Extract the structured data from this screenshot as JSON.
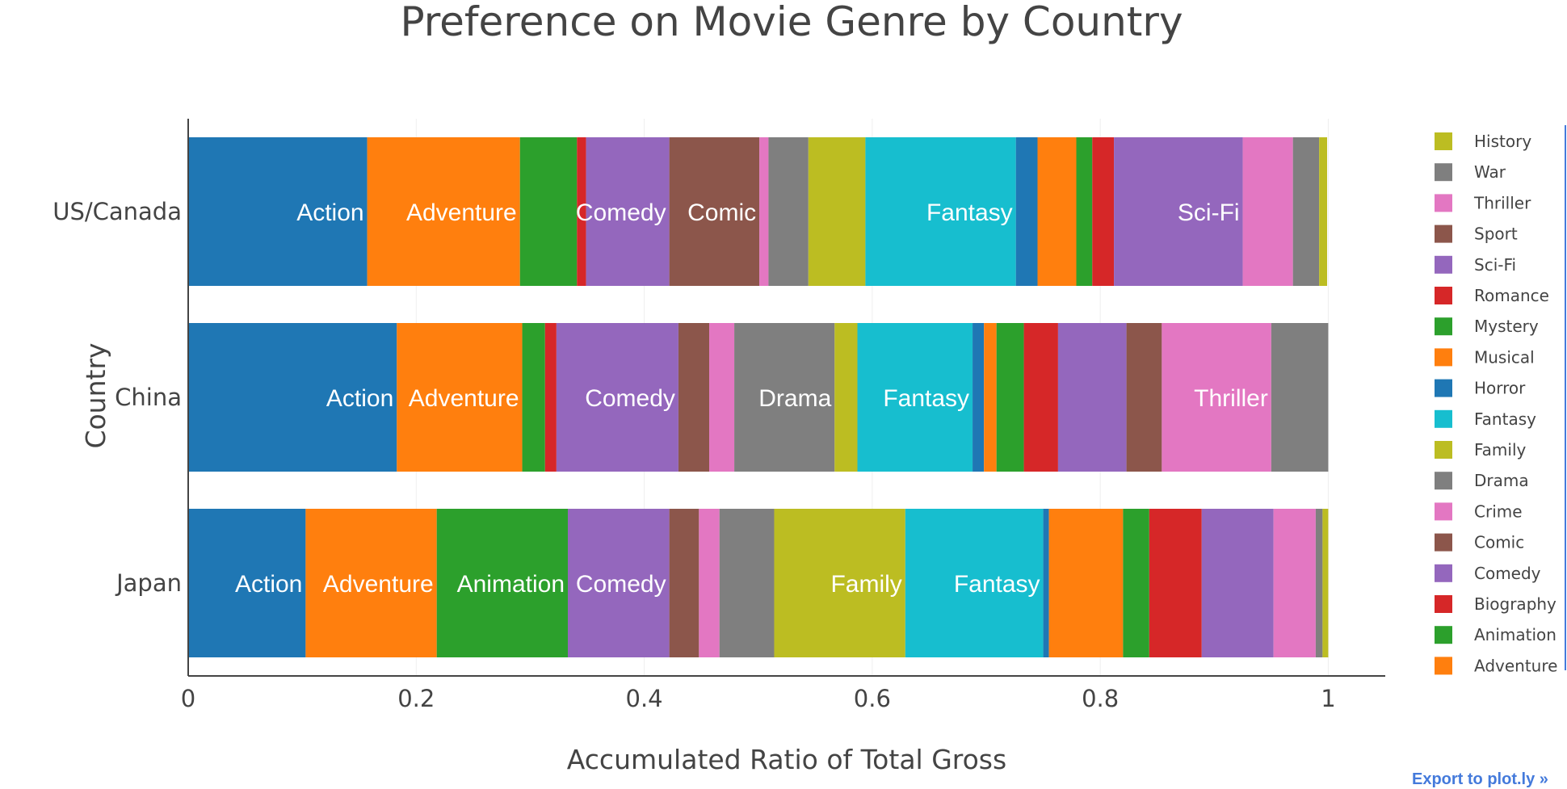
{
  "export_link": "Export to plot.ly »",
  "chart_data": {
    "type": "bar",
    "orientation": "horizontal",
    "barmode": "stack",
    "title": "Preference on Movie Genre by Country",
    "xlabel": "Accumulated Ratio of Total Gross",
    "ylabel": "Country",
    "xlim": [
      0,
      1.05
    ],
    "xticks": [
      0,
      0.2,
      0.4,
      0.6,
      0.8,
      1
    ],
    "xtick_labels": [
      "0",
      "0.2",
      "0.4",
      "0.6",
      "0.8",
      "1"
    ],
    "grid": true,
    "categories": [
      "US/Canada",
      "China",
      "Japan"
    ],
    "legend_position": "right",
    "series": [
      {
        "name": "Action",
        "color": "#1f77b4",
        "values": [
          0.157,
          0.183,
          0.103
        ],
        "labels": [
          "Action",
          "Action",
          "Action"
        ]
      },
      {
        "name": "Adventure",
        "color": "#ff7f0e",
        "values": [
          0.134,
          0.11,
          0.115
        ],
        "labels": [
          "Adventure",
          "Adventure",
          "Adventure"
        ]
      },
      {
        "name": "Animation",
        "color": "#2ca02c",
        "values": [
          0.05,
          0.02,
          0.115
        ],
        "labels": [
          "",
          "",
          "Animation"
        ]
      },
      {
        "name": "Biography",
        "color": "#d62728",
        "values": [
          0.008,
          0.01,
          0.0
        ],
        "labels": [
          "",
          "",
          ""
        ]
      },
      {
        "name": "Comedy",
        "color": "#9467bd",
        "values": [
          0.073,
          0.107,
          0.089
        ],
        "labels": [
          "Comedy",
          "Comedy",
          "Comedy"
        ]
      },
      {
        "name": "Comic",
        "color": "#8c564b",
        "values": [
          0.079,
          0.027,
          0.026
        ],
        "labels": [
          "Comic",
          "",
          ""
        ]
      },
      {
        "name": "Crime",
        "color": "#e377c2",
        "values": [
          0.008,
          0.022,
          0.018
        ],
        "labels": [
          "",
          "",
          ""
        ]
      },
      {
        "name": "Drama",
        "color": "#7f7f7f",
        "values": [
          0.035,
          0.088,
          0.048
        ],
        "labels": [
          "",
          "Drama",
          ""
        ]
      },
      {
        "name": "Family",
        "color": "#bcbd22",
        "values": [
          0.05,
          0.02,
          0.115
        ],
        "labels": [
          "",
          "",
          "Family"
        ]
      },
      {
        "name": "Fantasy",
        "color": "#17becf",
        "values": [
          0.132,
          0.101,
          0.121
        ],
        "labels": [
          "Fantasy",
          "Fantasy",
          "Fantasy"
        ]
      },
      {
        "name": "Horror",
        "color": "#1f77b4",
        "values": [
          0.019,
          0.01,
          0.005
        ],
        "labels": [
          "",
          "",
          ""
        ]
      },
      {
        "name": "Musical",
        "color": "#ff7f0e",
        "values": [
          0.034,
          0.011,
          0.065
        ],
        "labels": [
          "",
          "",
          ""
        ]
      },
      {
        "name": "Mystery",
        "color": "#2ca02c",
        "values": [
          0.014,
          0.024,
          0.023
        ],
        "labels": [
          "",
          "",
          ""
        ]
      },
      {
        "name": "Romance",
        "color": "#d62728",
        "values": [
          0.019,
          0.03,
          0.046
        ],
        "labels": [
          "",
          "",
          ""
        ]
      },
      {
        "name": "Sci-Fi",
        "color": "#9467bd",
        "values": [
          0.113,
          0.06,
          0.063
        ],
        "labels": [
          "Sci-Fi",
          "",
          ""
        ]
      },
      {
        "name": "Sport",
        "color": "#8c564b",
        "values": [
          0.0,
          0.031,
          0.0
        ],
        "labels": [
          "",
          "",
          ""
        ]
      },
      {
        "name": "Thriller",
        "color": "#e377c2",
        "values": [
          0.044,
          0.096,
          0.037
        ],
        "labels": [
          "",
          "Thriller",
          ""
        ]
      },
      {
        "name": "War",
        "color": "#7f7f7f",
        "values": [
          0.023,
          0.05,
          0.006
        ],
        "labels": [
          "",
          "",
          ""
        ]
      },
      {
        "name": "History",
        "color": "#bcbd22",
        "values": [
          0.007,
          0.0,
          0.005
        ],
        "labels": [
          "",
          "",
          ""
        ]
      }
    ],
    "legend_order": [
      "History",
      "War",
      "Thriller",
      "Sport",
      "Sci-Fi",
      "Romance",
      "Mystery",
      "Musical",
      "Horror",
      "Fantasy",
      "Family",
      "Drama",
      "Crime",
      "Comic",
      "Comedy",
      "Biography",
      "Animation",
      "Adventure"
    ]
  }
}
